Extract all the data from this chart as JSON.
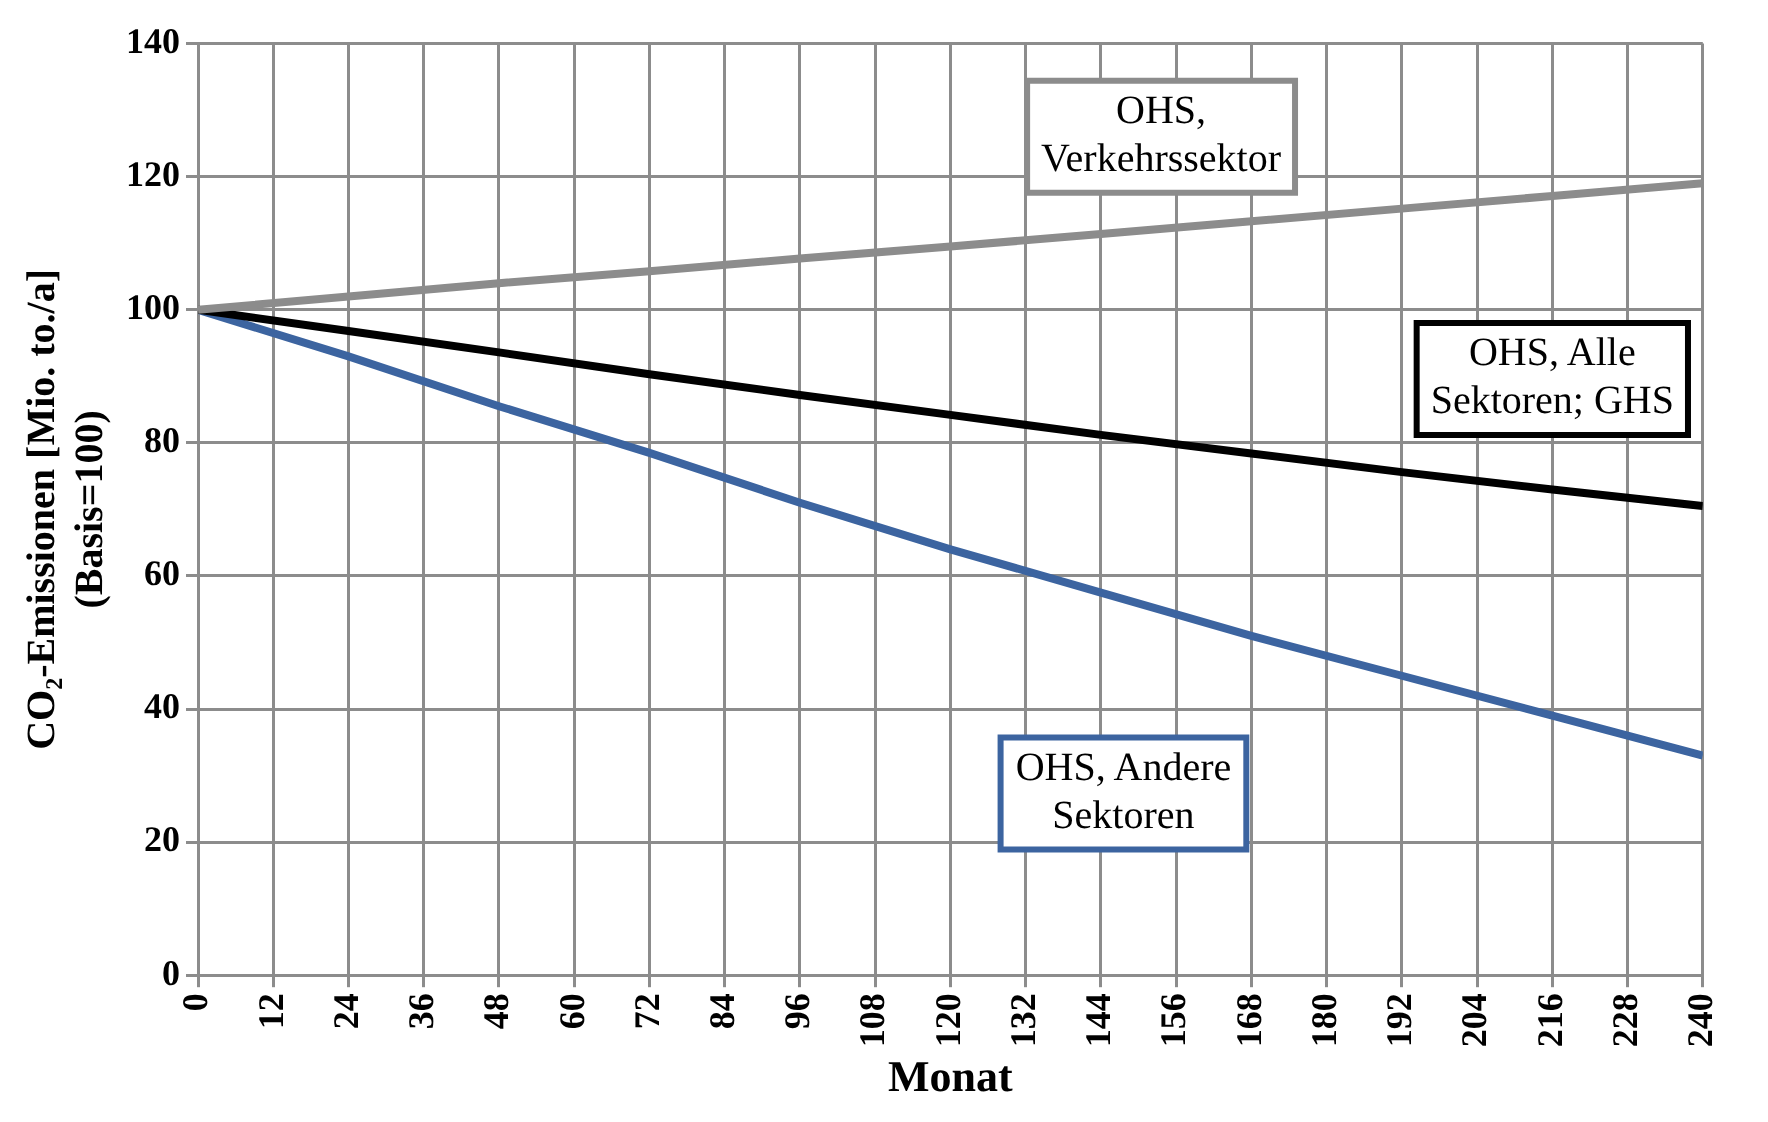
{
  "chart_data": {
    "type": "line",
    "xlabel": "Monat",
    "ylabel": "CO₂-Emissionen [Mio. to./a]\n(Basis=100)",
    "x": [
      0,
      24,
      48,
      72,
      96,
      120,
      144,
      168,
      192,
      216,
      240
    ],
    "series": [
      {
        "name": "OHS, Verkehrssektor",
        "color": "#8c8c8c",
        "values": [
          100,
          102,
          104,
          105.8,
          107.7,
          109.5,
          111.4,
          113.3,
          115.2,
          117.1,
          119
        ]
      },
      {
        "name": "OHS, Alle Sektoren; GHS",
        "color": "#000000",
        "values": [
          100,
          96.8,
          93.6,
          90.3,
          87.2,
          84.2,
          81.2,
          78.4,
          75.6,
          73,
          70.5
        ]
      },
      {
        "name": "OHS, Andere Sektoren",
        "color": "#3c64a0",
        "values": [
          100,
          93,
          85.5,
          78.5,
          71,
          64,
          57.5,
          51,
          45,
          39,
          33
        ]
      }
    ],
    "xlim": [
      0,
      240
    ],
    "xticks": [
      0,
      12,
      24,
      36,
      48,
      60,
      72,
      84,
      96,
      108,
      120,
      132,
      144,
      156,
      168,
      180,
      192,
      204,
      216,
      228,
      240
    ],
    "ylim": [
      0,
      140
    ],
    "yticks": [
      0,
      20,
      40,
      60,
      80,
      100,
      120,
      140
    ],
    "grid": true,
    "legend": false,
    "marker": "none",
    "line_style": "solid"
  }
}
